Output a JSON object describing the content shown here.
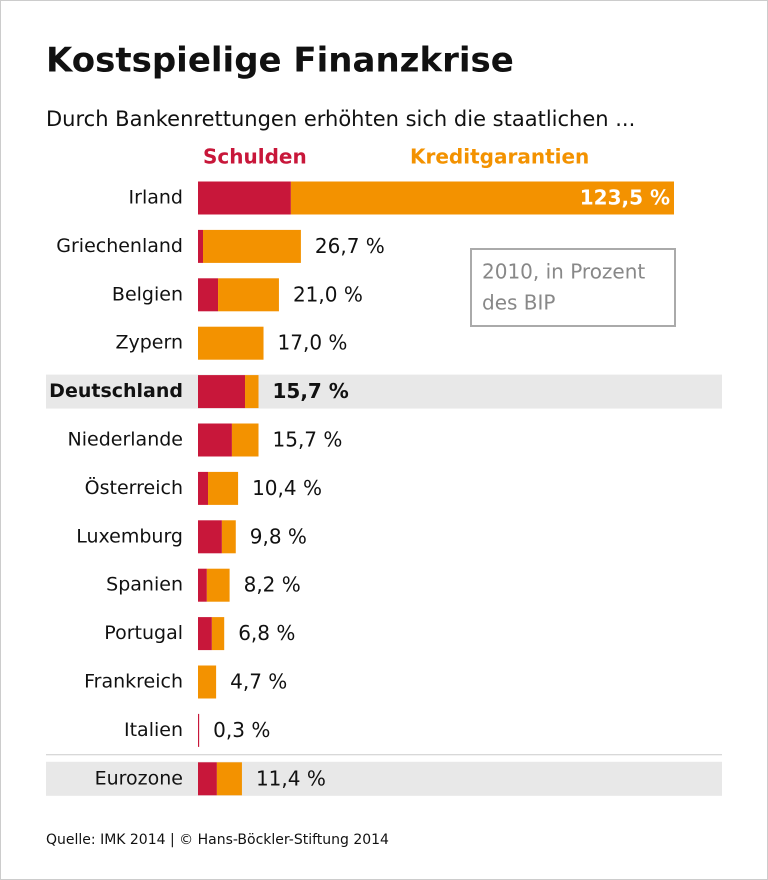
{
  "chart_data": {
    "type": "stacked-bar-horizontal",
    "title": "Kostspielige Finanzkrise",
    "subtitle": "Durch Bankenrettungen erhöhten sich die staatlichen ...",
    "categories": [
      "Irland",
      "Griechenland",
      "Belgien",
      "Zypern",
      "Deutschland",
      "Niederlande",
      "Österreich",
      "Luxemburg",
      "Spanien",
      "Portugal",
      "Frankreich",
      "Italien",
      "Eurozone"
    ],
    "series": [
      {
        "name": "Schulden",
        "color": "#c8173a",
        "values": [
          24.1,
          1.3,
          5.2,
          0,
          12.2,
          8.8,
          2.6,
          6.2,
          2.3,
          3.6,
          0,
          0.3,
          4.9
        ]
      },
      {
        "name": "Kreditgarantien",
        "color": "#f39200",
        "values": [
          99.4,
          25.4,
          15.8,
          17.0,
          3.5,
          6.9,
          7.8,
          3.6,
          5.9,
          3.2,
          4.7,
          0,
          6.5
        ]
      }
    ],
    "totals": [
      123.5,
      26.7,
      21.0,
      17.0,
      15.7,
      15.7,
      10.4,
      9.8,
      8.2,
      6.8,
      4.7,
      0.3,
      11.4
    ],
    "total_labels": [
      "123,5 %",
      "26,7 %",
      "21,0 %",
      "17,0 %",
      "15,7 %",
      "15,7 %",
      "10,4 %",
      "9,8 %",
      "8,2 %",
      "6,8 %",
      "4,7 %",
      "0,3 %",
      "11,4 %"
    ],
    "xlim": [
      0,
      123.5
    ],
    "highlight": [
      "Deutschland",
      "Eurozone"
    ],
    "bold": [
      "Deutschland"
    ],
    "annotation": [
      "2010, in Prozent",
      "des BIP"
    ],
    "source": "Quelle: IMK 2014 | © Hans-Böckler-Stiftung 2014"
  }
}
